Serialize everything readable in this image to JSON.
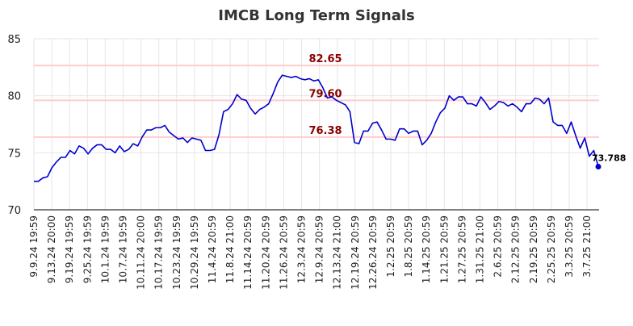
{
  "chart_data": {
    "type": "line",
    "title": "IMCB Long Term Signals",
    "xlabel": "",
    "ylabel": "",
    "ylim": [
      70,
      85
    ],
    "yticks": [
      70,
      75,
      80,
      85
    ],
    "grid": true,
    "x_tick_labels": [
      "9.9.24 19:59",
      "9.13.24 20:00",
      "9.19.24 19:59",
      "9.25.24 19:59",
      "10.1.24 19:59",
      "10.7.24 19:59",
      "10.11.24 20:00",
      "10.17.24 19:59",
      "10.23.24 19:59",
      "10.29.24 19:59",
      "11.4.24 20:59",
      "11.8.24 21:00",
      "11.14.24 20:59",
      "11.20.24 20:59",
      "11.26.24 20:59",
      "12.3.24 20:59",
      "12.9.24 20:59",
      "12.13.24 21:00",
      "12.19.24 20:59",
      "12.26.24 20:59",
      "1.2.25 20:59",
      "1.8.25 20:59",
      "1.14.25 20:59",
      "1.21.25 20:59",
      "1.27.25 20:59",
      "1.31.25 21:00",
      "2.6.25 20:59",
      "2.12.25 20:59",
      "2.19.25 20:59",
      "2.25.25 20:59",
      "3.3.25 20:59",
      "3.7.25 21:00"
    ],
    "series": [
      {
        "color": "#0000cc",
        "values": [
          72.5,
          72.5,
          72.8,
          72.9,
          73.7,
          74.2,
          74.6,
          74.6,
          75.2,
          74.9,
          75.6,
          75.4,
          74.9,
          75.4,
          75.7,
          75.7,
          75.3,
          75.3,
          75.0,
          75.6,
          75.1,
          75.3,
          75.8,
          75.6,
          76.4,
          77.0,
          77.0,
          77.2,
          77.2,
          77.4,
          76.8,
          76.5,
          76.2,
          76.3,
          75.9,
          76.3,
          76.2,
          76.1,
          75.2,
          75.2,
          75.3,
          76.6,
          78.6,
          78.8,
          79.3,
          80.1,
          79.7,
          79.6,
          78.9,
          78.4,
          78.8,
          79.0,
          79.3,
          80.2,
          81.2,
          81.8,
          81.7,
          81.6,
          81.7,
          81.5,
          81.4,
          81.5,
          81.3,
          81.4,
          80.7,
          79.8,
          79.9,
          79.6,
          79.4,
          79.2,
          78.6,
          75.9,
          75.8,
          76.9,
          76.9,
          77.6,
          77.7,
          77.0,
          76.2,
          76.2,
          76.1,
          77.1,
          77.1,
          76.7,
          76.9,
          76.9,
          75.7,
          76.1,
          76.7,
          77.7,
          78.5,
          78.9,
          80.0,
          79.6,
          79.9,
          79.9,
          79.3,
          79.3,
          79.1,
          79.9,
          79.4,
          78.8,
          79.1,
          79.5,
          79.4,
          79.1,
          79.3,
          79.0,
          78.6,
          79.3,
          79.3,
          79.8,
          79.7,
          79.3,
          79.8,
          77.7,
          77.4,
          77.4,
          76.7,
          77.7,
          76.5,
          75.4,
          76.3,
          74.7,
          75.2,
          73.788
        ]
      }
    ],
    "levels": [
      {
        "value": 82.65,
        "label": "82.65"
      },
      {
        "value": 79.6,
        "label": "79.60"
      },
      {
        "value": 76.38,
        "label": "76.38"
      }
    ],
    "level_line_color": "#ffcccc",
    "level_label_color": "#8b0000",
    "last_point": {
      "value": 73.788,
      "label": "73.788"
    }
  }
}
